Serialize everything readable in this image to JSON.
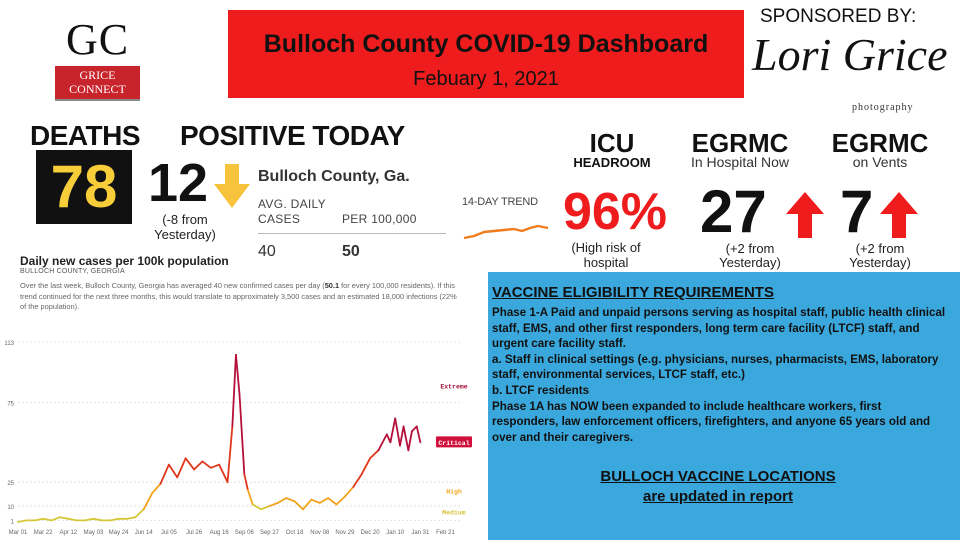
{
  "logo": {
    "letters": "GC",
    "line1": "GRICE",
    "line2": "CONNECT"
  },
  "header": {
    "title": "Bulloch County COVID-19 Dashboard",
    "date": "Febuary 1, 2021"
  },
  "sponsor": {
    "label": "SPONSORED BY:",
    "name": "Lori Grice",
    "subtitle": "photography"
  },
  "deaths": {
    "label": "DEATHS",
    "value": "78",
    "box_color": "#111111",
    "value_color": "#f7cd3a"
  },
  "positive": {
    "label": "POSITIVE TODAY",
    "value": "12",
    "change": "(-8 from Yesterday)",
    "arrow": "down-arrow-icon",
    "arrow_color": "#f7c33a"
  },
  "county_avg": {
    "title": "Bulloch County, Ga.",
    "col1_header": "AVG. DAILY\nCASES",
    "col2_header": "PER 100,000",
    "col1_value": "40",
    "col2_value": "50"
  },
  "trend": {
    "label": "14-DAY TREND",
    "color": "#f07c1e"
  },
  "icu": {
    "label": "ICU",
    "sublabel": "HEADROOM",
    "value": "96%",
    "note": "(High risk of hospital overload)",
    "value_color": "#ee1c1c"
  },
  "egrmc_hospital": {
    "label": "EGRMC",
    "sublabel": "In Hospital Now",
    "value": "27",
    "note": "(+2 from Yesterday)",
    "arrow": "up-arrow-icon",
    "arrow_color": "#ee1c1c"
  },
  "egrmc_vents": {
    "label": "EGRMC",
    "sublabel": "on Vents",
    "value": "7",
    "note": "(+2 from Yesterday)",
    "arrow": "up-arrow-icon",
    "arrow_color": "#ee1c1c"
  },
  "chart_panel": {
    "title": "Daily new cases per 100k population",
    "subtitle": "BULLOCH COUNTY, GEORGIA",
    "desc_pre": "Over the last week, Bulloch County, Georgia has averaged 40 new confirmed cases per day (",
    "desc_bold": "50.1",
    "desc_post": " for every 100,000 residents). If this trend continued for the next three months, this would translate to approximately 3,500 cases and an estimated 18,000 infections (22% of the population)."
  },
  "chart_data": {
    "type": "line",
    "title": "Daily new cases per 100k population",
    "xlabel": "",
    "ylabel": "",
    "yticks": [
      1,
      10,
      25,
      75,
      113
    ],
    "ylim": [
      0,
      113
    ],
    "xticks": [
      "Mar 01",
      "Mar 22",
      "Apr 12",
      "May 03",
      "May 24",
      "Jun 14",
      "Jul 05",
      "Jul 26",
      "Aug 16",
      "Sep 06",
      "Sep 27",
      "Oct 18",
      "Nov 08",
      "Nov 29",
      "Dec 20",
      "Jan 10",
      "Jan 31",
      "Feb 21"
    ],
    "risk_levels": [
      {
        "name": "Extreme",
        "value": 85,
        "color": "#a3123a"
      },
      {
        "name": "Critical",
        "value": 50,
        "color": "#d0103a"
      },
      {
        "name": "High",
        "value": 19,
        "color": "#f5a623"
      },
      {
        "name": "Medium",
        "value": 6,
        "color": "#d8c23a"
      }
    ],
    "series": [
      {
        "x": [
          "Mar 01",
          "Mar 08",
          "Mar 15",
          "Mar 22",
          "Mar 29",
          "Apr 05",
          "Apr 12",
          "Apr 19",
          "Apr 26",
          "May 03",
          "May 10",
          "May 17",
          "May 24",
          "May 31",
          "Jun 07",
          "Jun 14",
          "Jun 21",
          "Jun 28",
          "Jul 05",
          "Jul 12",
          "Jul 19",
          "Jul 26",
          "Aug 02",
          "Aug 09",
          "Aug 16",
          "Aug 23",
          "Aug 27",
          "Aug 30",
          "Sep 02",
          "Sep 06",
          "Sep 09",
          "Sep 13",
          "Sep 20",
          "Sep 27",
          "Oct 04",
          "Oct 11",
          "Oct 18",
          "Oct 25",
          "Nov 01",
          "Nov 08",
          "Nov 15",
          "Nov 22",
          "Nov 29",
          "Dec 06",
          "Dec 13",
          "Dec 20",
          "Dec 27",
          "Jan 03",
          "Jan 06",
          "Jan 10",
          "Jan 14",
          "Jan 17",
          "Jan 21",
          "Jan 24",
          "Jan 28",
          "Jan 31"
        ],
        "values": [
          0,
          1,
          1,
          2,
          1,
          3,
          2,
          1,
          1,
          2,
          1,
          1,
          2,
          2,
          3,
          8,
          18,
          24,
          36,
          28,
          40,
          33,
          38,
          34,
          36,
          25,
          60,
          105,
          80,
          30,
          20,
          11,
          8,
          10,
          12,
          15,
          13,
          8,
          14,
          12,
          15,
          11,
          16,
          22,
          30,
          40,
          45,
          55,
          50,
          65,
          48,
          60,
          45,
          57,
          60,
          50
        ]
      }
    ]
  },
  "vaccine": {
    "title": "VACCINE ELIGIBILITY REQUIREMENTS",
    "body": [
      "Phase 1-A Paid and unpaid persons serving as hospital staff, public health clinical staff, EMS, and other first responders, long term care facility (LTCF) staff, and urgent care facility staff.",
      "a. Staff in clinical settings (e.g. physicians, nurses, pharmacists, EMS, laboratory staff, environmental services, LTCF staff, etc.)",
      "b. LTCF residents",
      "Phase 1A has NOW been expanded to include healthcare workers, first responders, law enforcement officers, firefighters, and anyone 65 years old and over and their caregivers."
    ],
    "locations_line1": "BULLOCH VACCINE LOCATIONS",
    "locations_line2": "are updated in report",
    "bg_color": "#3aa8dd"
  }
}
